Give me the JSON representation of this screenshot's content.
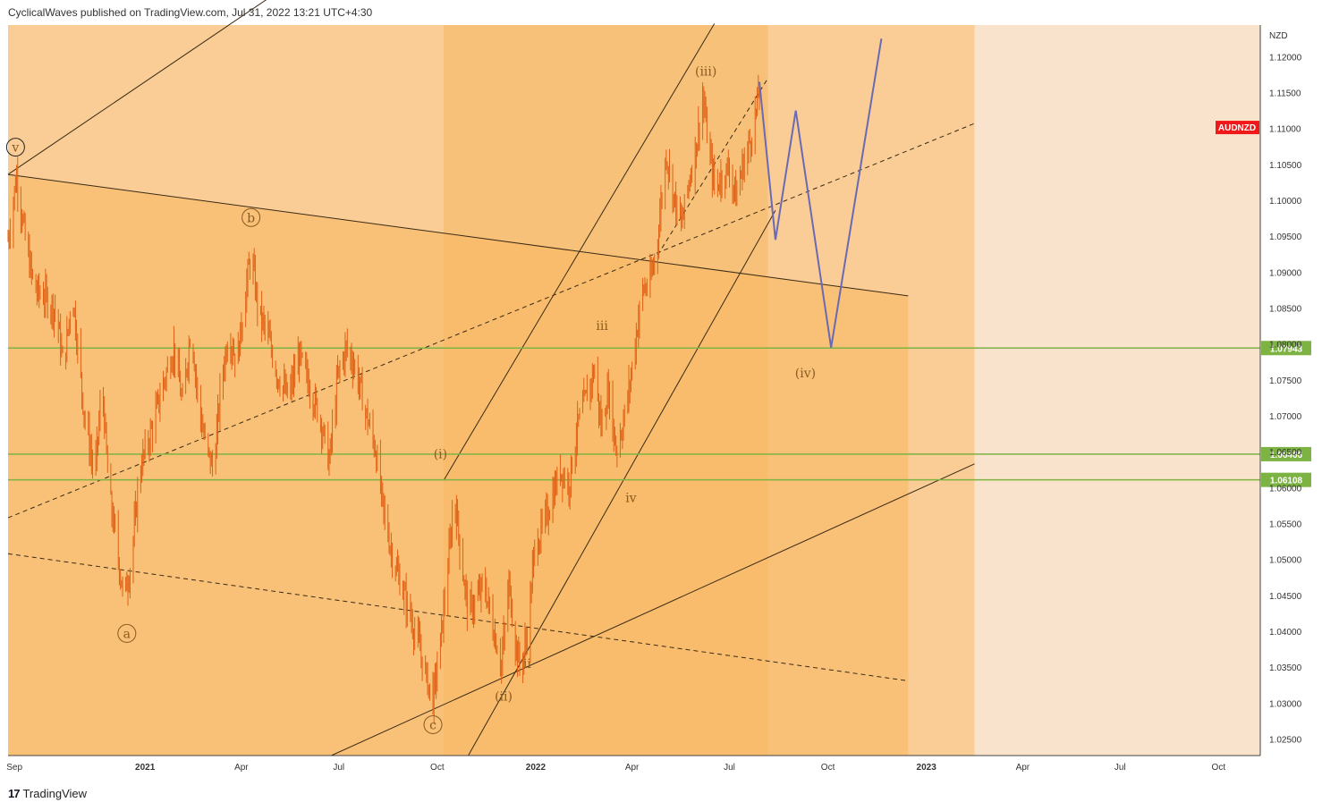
{
  "header": {
    "publisher_line": "CyclicalWaves published on TradingView.com, Jul 31, 2022 13:21 UTC+4:30"
  },
  "footer": {
    "brand": "TradingView",
    "logo": "tradingview-logo-icon"
  },
  "colors": {
    "background_light": "#fae3cc",
    "zone_medium": "#f9cd95",
    "zone_dark": "#f8b864",
    "candle": "#e06014",
    "projection": "#6a6ab2",
    "support_line": "#7cb342",
    "symbol_badge": "#f01818",
    "label_text": "#8a5a20"
  },
  "chart_data": {
    "type": "candlestick",
    "symbol": "AUDNZD",
    "currency": "NZD",
    "y_axis": {
      "ticks": [
        "1.02500",
        "1.03000",
        "1.03500",
        "1.04000",
        "1.04500",
        "1.05000",
        "1.05500",
        "1.06000",
        "1.06500",
        "1.07000",
        "1.07500",
        "1.08000",
        "1.08500",
        "1.09000",
        "1.09500",
        "1.10000",
        "1.10500",
        "1.11000",
        "1.11500",
        "1.12000"
      ],
      "range": [
        1.0227,
        1.1244
      ]
    },
    "x_axis": {
      "ticks": [
        "Sep",
        "2021",
        "Apr",
        "Jul",
        "Oct",
        "2022",
        "Apr",
        "Jul",
        "Oct",
        "2023",
        "Apr",
        "Jul",
        "Oct"
      ],
      "tick_dates": [
        "2020-09-01",
        "2021-01-01",
        "2021-04-01",
        "2021-07-01",
        "2021-10-01",
        "2022-01-01",
        "2022-04-01",
        "2022-07-01",
        "2022-10-01",
        "2023-01-01",
        "2023-04-01",
        "2023-07-01",
        "2023-10-01"
      ],
      "range": [
        "2020-08-26",
        "2023-11-09"
      ]
    },
    "price_path": [
      [
        "2020-08-26",
        1.0945
      ],
      [
        "2020-09-03",
        1.1035
      ],
      [
        "2020-09-12",
        1.0935
      ],
      [
        "2020-09-20",
        1.0875
      ],
      [
        "2020-09-30",
        1.0865
      ],
      [
        "2020-10-10",
        1.0845
      ],
      [
        "2020-10-17",
        1.0765
      ],
      [
        "2020-10-25",
        1.0875
      ],
      [
        "2020-11-05",
        1.0705
      ],
      [
        "2020-11-15",
        1.0615
      ],
      [
        "2020-11-22",
        1.0745
      ],
      [
        "2020-11-28",
        1.0595
      ],
      [
        "2020-12-05",
        1.0525
      ],
      [
        "2020-12-12",
        1.0445
      ],
      [
        "2020-12-19",
        1.0495
      ],
      [
        "2020-12-27",
        1.0625
      ],
      [
        "2021-01-08",
        1.0685
      ],
      [
        "2021-01-18",
        1.0745
      ],
      [
        "2021-01-28",
        1.0795
      ],
      [
        "2021-02-05",
        1.0715
      ],
      [
        "2021-02-13",
        1.0825
      ],
      [
        "2021-02-20",
        1.0715
      ],
      [
        "2021-02-27",
        1.0655
      ],
      [
        "2021-03-06",
        1.0625
      ],
      [
        "2021-03-13",
        1.0745
      ],
      [
        "2021-03-20",
        1.0815
      ],
      [
        "2021-03-28",
        1.0775
      ],
      [
        "2021-04-05",
        1.0875
      ],
      [
        "2021-04-10",
        1.0925
      ],
      [
        "2021-04-17",
        1.0845
      ],
      [
        "2021-04-25",
        1.0815
      ],
      [
        "2021-05-05",
        1.0755
      ],
      [
        "2021-05-15",
        1.0725
      ],
      [
        "2021-05-25",
        1.0785
      ],
      [
        "2021-06-05",
        1.0735
      ],
      [
        "2021-06-14",
        1.0695
      ],
      [
        "2021-06-22",
        1.0635
      ],
      [
        "2021-06-30",
        1.0755
      ],
      [
        "2021-07-08",
        1.0795
      ],
      [
        "2021-07-17",
        1.0765
      ],
      [
        "2021-07-26",
        1.0705
      ],
      [
        "2021-08-04",
        1.0655
      ],
      [
        "2021-08-12",
        1.0565
      ],
      [
        "2021-08-20",
        1.0505
      ],
      [
        "2021-08-28",
        1.0465
      ],
      [
        "2021-09-05",
        1.0425
      ],
      [
        "2021-09-13",
        1.0385
      ],
      [
        "2021-09-21",
        1.0335
      ],
      [
        "2021-09-27",
        1.0305
      ],
      [
        "2021-10-04",
        1.0385
      ],
      [
        "2021-10-12",
        1.0505
      ],
      [
        "2021-10-17",
        1.0595
      ],
      [
        "2021-10-23",
        1.0505
      ],
      [
        "2021-10-30",
        1.0425
      ],
      [
        "2021-11-07",
        1.0445
      ],
      [
        "2021-11-14",
        1.0465
      ],
      [
        "2021-11-22",
        1.0405
      ],
      [
        "2021-11-30",
        1.0355
      ],
      [
        "2021-12-07",
        1.0465
      ],
      [
        "2021-12-13",
        1.0385
      ],
      [
        "2021-12-18",
        1.0345
      ],
      [
        "2021-12-24",
        1.0395
      ],
      [
        "2021-12-31",
        1.0515
      ],
      [
        "2022-01-08",
        1.0545
      ],
      [
        "2022-01-16",
        1.0585
      ],
      [
        "2022-01-24",
        1.0625
      ],
      [
        "2022-02-01",
        1.0605
      ],
      [
        "2022-02-09",
        1.0685
      ],
      [
        "2022-02-17",
        1.0725
      ],
      [
        "2022-02-25",
        1.0765
      ],
      [
        "2022-03-03",
        1.0685
      ],
      [
        "2022-03-10",
        1.0735
      ],
      [
        "2022-03-17",
        1.0655
      ],
      [
        "2022-03-23",
        1.0685
      ],
      [
        "2022-03-29",
        1.0735
      ],
      [
        "2022-04-05",
        1.0815
      ],
      [
        "2022-04-11",
        1.0875
      ],
      [
        "2022-04-18",
        1.0885
      ],
      [
        "2022-04-24",
        1.0935
      ],
      [
        "2022-04-28",
        1.0995
      ],
      [
        "2022-05-03",
        1.1065
      ],
      [
        "2022-05-10",
        1.1005
      ],
      [
        "2022-05-17",
        1.0965
      ],
      [
        "2022-05-24",
        1.1025
      ],
      [
        "2022-06-01",
        1.1085
      ],
      [
        "2022-06-06",
        1.1145
      ],
      [
        "2022-06-12",
        1.1065
      ],
      [
        "2022-06-18",
        1.1015
      ],
      [
        "2022-06-24",
        1.1035
      ],
      [
        "2022-07-01",
        1.1045
      ],
      [
        "2022-07-07",
        1.1005
      ],
      [
        "2022-07-13",
        1.1045
      ],
      [
        "2022-07-19",
        1.1075
      ],
      [
        "2022-07-25",
        1.1115
      ],
      [
        "2022-07-29",
        1.1155
      ]
    ],
    "projection_path": [
      [
        "2022-07-29",
        1.1165
      ],
      [
        "2022-08-13",
        1.0945
      ],
      [
        "2022-09-01",
        1.1125
      ],
      [
        "2022-10-04",
        1.0795
      ],
      [
        "2022-11-20",
        1.1225
      ]
    ],
    "horizontal_levels": [
      {
        "label": "1.07943",
        "value": 1.07943
      },
      {
        "label": "1.06466",
        "value": 1.06466
      },
      {
        "label": "1.06108",
        "value": 1.06108
      }
    ],
    "wave_labels": [
      {
        "text": "v",
        "date": "2020-09-02",
        "price": 1.1074,
        "circled": true
      },
      {
        "text": "b",
        "date": "2021-04-10",
        "price": 1.0976,
        "circled": true
      },
      {
        "text": "a",
        "date": "2020-12-15",
        "price": 1.0397,
        "circled": true
      },
      {
        "text": "c",
        "date": "2021-09-27",
        "price": 1.027,
        "circled": true
      },
      {
        "text": "(i)",
        "date": "2021-10-04",
        "price": 1.0647,
        "circled": false
      },
      {
        "text": "(ii)",
        "date": "2021-12-02",
        "price": 1.031,
        "circled": false
      },
      {
        "text": "ii",
        "date": "2021-12-24",
        "price": 1.0355,
        "circled": false
      },
      {
        "text": "iii",
        "date": "2022-03-04",
        "price": 1.0826,
        "circled": false
      },
      {
        "text": "iv",
        "date": "2022-03-31",
        "price": 1.0586,
        "circled": false
      },
      {
        "text": "(iii)",
        "date": "2022-06-09",
        "price": 1.118,
        "circled": false
      },
      {
        "text": "(iv)",
        "date": "2022-09-10",
        "price": 1.076,
        "circled": false
      }
    ],
    "trendlines": [
      {
        "style": "solid",
        "points": [
          [
            "2020-08-26",
            1.1036
          ],
          [
            "2021-04-30",
            1.1285
          ]
        ]
      },
      {
        "style": "solid",
        "points": [
          [
            "2020-08-26",
            1.1036
          ],
          [
            "2022-12-15",
            1.0867
          ]
        ]
      },
      {
        "style": "solid",
        "points": [
          [
            "2021-06-24",
            1.0227
          ],
          [
            "2023-02-15",
            1.0633
          ]
        ]
      },
      {
        "style": "solid",
        "points": [
          [
            "2021-10-07",
            1.061
          ],
          [
            "2022-06-17",
            1.1246
          ]
        ]
      },
      {
        "style": "solid",
        "points": [
          [
            "2021-10-30",
            1.0227
          ],
          [
            "2022-08-13",
            1.0986
          ]
        ]
      },
      {
        "style": "dashed",
        "points": [
          [
            "2020-08-26",
            1.0558
          ],
          [
            "2023-02-15",
            1.1107
          ]
        ]
      },
      {
        "style": "dashed",
        "points": [
          [
            "2020-08-26",
            1.0508
          ],
          [
            "2022-12-15",
            1.0331
          ]
        ]
      },
      {
        "style": "dashed",
        "points": [
          [
            "2022-04-25",
            1.0924
          ],
          [
            "2022-08-06",
            1.117
          ]
        ]
      }
    ]
  }
}
